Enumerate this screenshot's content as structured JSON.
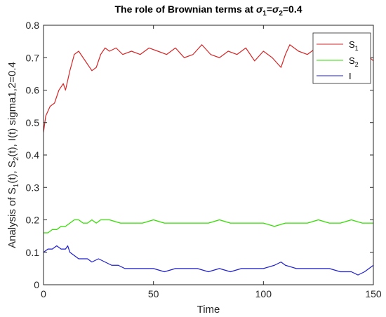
{
  "chart_data": {
    "type": "line",
    "title": {
      "prefix": "The role of Brownian terms at ",
      "sym1": "σ",
      "sub1": "1",
      "eq1": "=",
      "sym2": "σ",
      "sub2": "2",
      "eq2": "=0.4"
    },
    "xlabel": "Time",
    "ylabel": {
      "a": "Analysis of S",
      "a_sub": "1",
      "b": "(t), S",
      "b_sub": "2",
      "c": "(t), I(t) sigma1,2=0.4"
    },
    "xlim": [
      0,
      150
    ],
    "ylim": [
      0,
      0.8
    ],
    "xticks": [
      0,
      50,
      100,
      150
    ],
    "yticks": [
      0,
      0.1,
      0.2,
      0.3,
      0.4,
      0.5,
      0.6,
      0.7,
      0.8
    ],
    "grid": false,
    "legend_position": "top-right",
    "series": [
      {
        "name": "S",
        "name_sub": "1",
        "color": "#d62728",
        "x": [
          0,
          1,
          3,
          5,
          7,
          9,
          10,
          12,
          14,
          16,
          18,
          20,
          22,
          24,
          26,
          28,
          30,
          33,
          36,
          40,
          44,
          48,
          52,
          56,
          60,
          64,
          68,
          72,
          76,
          80,
          84,
          88,
          92,
          96,
          100,
          104,
          108,
          110,
          112,
          116,
          120,
          124,
          128,
          132,
          136,
          140,
          144,
          147,
          150
        ],
        "y": [
          0.47,
          0.52,
          0.55,
          0.56,
          0.6,
          0.62,
          0.6,
          0.66,
          0.71,
          0.72,
          0.7,
          0.68,
          0.66,
          0.67,
          0.71,
          0.73,
          0.72,
          0.73,
          0.71,
          0.72,
          0.71,
          0.73,
          0.72,
          0.71,
          0.73,
          0.7,
          0.71,
          0.74,
          0.71,
          0.7,
          0.72,
          0.71,
          0.73,
          0.69,
          0.72,
          0.7,
          0.67,
          0.71,
          0.74,
          0.72,
          0.71,
          0.73,
          0.74,
          0.72,
          0.73,
          0.71,
          0.72,
          0.71,
          0.69
        ]
      },
      {
        "name": "S",
        "name_sub": "2",
        "color": "#33dd00",
        "x": [
          0,
          2,
          4,
          6,
          8,
          10,
          12,
          14,
          16,
          18,
          20,
          22,
          24,
          26,
          28,
          30,
          35,
          40,
          45,
          50,
          55,
          60,
          65,
          70,
          75,
          80,
          85,
          90,
          95,
          100,
          105,
          110,
          115,
          120,
          125,
          130,
          135,
          140,
          145,
          150
        ],
        "y": [
          0.16,
          0.16,
          0.17,
          0.17,
          0.18,
          0.18,
          0.19,
          0.2,
          0.2,
          0.19,
          0.19,
          0.2,
          0.19,
          0.2,
          0.2,
          0.2,
          0.19,
          0.19,
          0.19,
          0.2,
          0.19,
          0.19,
          0.19,
          0.19,
          0.19,
          0.2,
          0.19,
          0.19,
          0.19,
          0.19,
          0.18,
          0.19,
          0.19,
          0.19,
          0.2,
          0.19,
          0.19,
          0.2,
          0.19,
          0.19
        ]
      },
      {
        "name": "I",
        "name_sub": "",
        "color": "#1f1fcc",
        "x": [
          0,
          2,
          4,
          6,
          8,
          10,
          11,
          12,
          14,
          16,
          18,
          20,
          22,
          25,
          28,
          31,
          34,
          37,
          40,
          45,
          50,
          55,
          60,
          65,
          70,
          75,
          80,
          85,
          90,
          95,
          100,
          105,
          108,
          110,
          115,
          120,
          125,
          130,
          135,
          140,
          143,
          146,
          150
        ],
        "y": [
          0.1,
          0.11,
          0.11,
          0.12,
          0.11,
          0.11,
          0.12,
          0.1,
          0.09,
          0.08,
          0.08,
          0.08,
          0.07,
          0.08,
          0.07,
          0.06,
          0.06,
          0.05,
          0.05,
          0.05,
          0.05,
          0.04,
          0.05,
          0.05,
          0.05,
          0.04,
          0.05,
          0.04,
          0.05,
          0.05,
          0.05,
          0.06,
          0.07,
          0.06,
          0.05,
          0.05,
          0.05,
          0.05,
          0.04,
          0.04,
          0.03,
          0.04,
          0.06
        ]
      }
    ]
  }
}
